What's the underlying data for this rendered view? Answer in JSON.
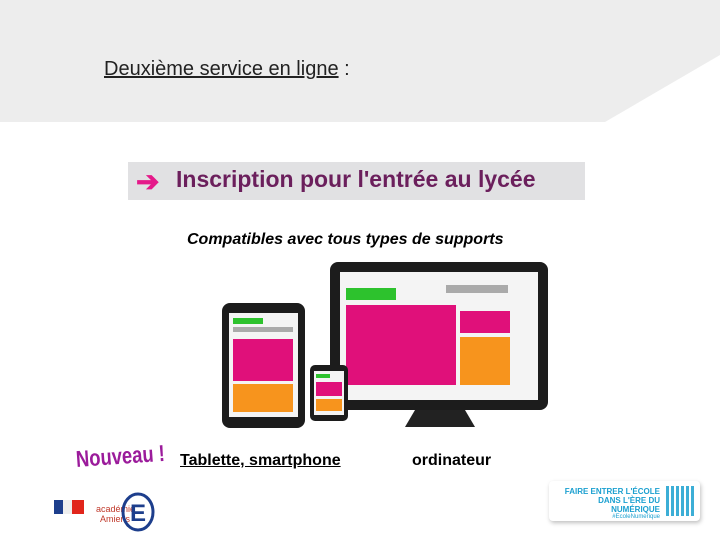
{
  "header": {
    "title": "Deuxième service en ligne",
    "title_suffix": " :"
  },
  "banner": {
    "text": "Inscription pour l'entrée au lycée",
    "icon": "arrow-right-icon",
    "accent": "#e5198a",
    "text_color": "#6b1f5c"
  },
  "subtitle": "Compatibles avec tous types de supports",
  "badge_new": "Nouveau !",
  "links": {
    "tablet_phone": "Tablette, smartphone",
    "computer": "ordinateur"
  },
  "footer": {
    "academy": "académie Amiens",
    "campaign": {
      "line1": "FAIRE ENTRER L'ÉCOLE",
      "line2": "DANS L'ÈRE DU NUMÉRIQUE",
      "handle": "#EcoleNumerique"
    }
  },
  "colors": {
    "magenta": "#e0107a",
    "orange": "#f7941d",
    "green": "#2dc22d",
    "band": "#ededed"
  }
}
